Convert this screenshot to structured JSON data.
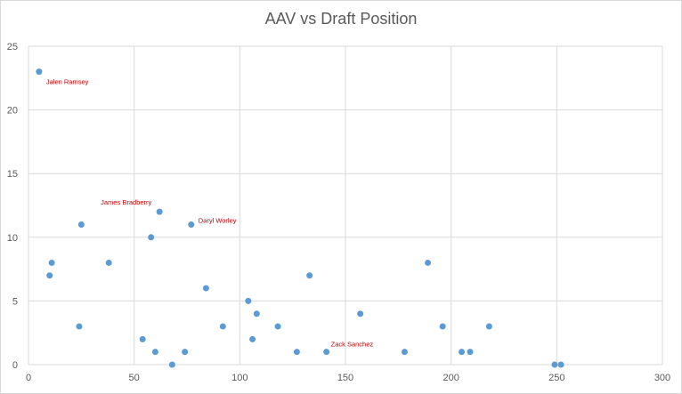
{
  "chart_data": {
    "type": "scatter",
    "title": "AAV vs Draft Position",
    "xlabel": "",
    "ylabel": "",
    "xlim": [
      0,
      300
    ],
    "ylim": [
      0,
      25
    ],
    "x_ticks": [
      0,
      50,
      100,
      150,
      200,
      250,
      300
    ],
    "y_ticks": [
      0,
      5,
      10,
      15,
      20,
      25
    ],
    "grid": true,
    "legend": "none",
    "marker_color": "#5b9bd5",
    "annotation_color": "#c00000",
    "points": [
      {
        "x": 5,
        "y": 23
      },
      {
        "x": 10,
        "y": 7
      },
      {
        "x": 11,
        "y": 8
      },
      {
        "x": 24,
        "y": 3
      },
      {
        "x": 25,
        "y": 11
      },
      {
        "x": 38,
        "y": 8
      },
      {
        "x": 54,
        "y": 2
      },
      {
        "x": 58,
        "y": 10
      },
      {
        "x": 60,
        "y": 1
      },
      {
        "x": 62,
        "y": 12
      },
      {
        "x": 68,
        "y": 0
      },
      {
        "x": 74,
        "y": 1
      },
      {
        "x": 77,
        "y": 11
      },
      {
        "x": 84,
        "y": 6
      },
      {
        "x": 92,
        "y": 3
      },
      {
        "x": 104,
        "y": 5
      },
      {
        "x": 106,
        "y": 2
      },
      {
        "x": 108,
        "y": 4
      },
      {
        "x": 118,
        "y": 3
      },
      {
        "x": 127,
        "y": 1
      },
      {
        "x": 133,
        "y": 7
      },
      {
        "x": 141,
        "y": 1
      },
      {
        "x": 157,
        "y": 4
      },
      {
        "x": 178,
        "y": 1
      },
      {
        "x": 189,
        "y": 8
      },
      {
        "x": 196,
        "y": 3
      },
      {
        "x": 205,
        "y": 1
      },
      {
        "x": 209,
        "y": 1
      },
      {
        "x": 218,
        "y": 3
      },
      {
        "x": 249,
        "y": 0
      },
      {
        "x": 252,
        "y": 0
      }
    ],
    "annotations": [
      {
        "text": "Jalen Ramsey",
        "x": 5,
        "y": 23
      },
      {
        "text": "James Bradberry",
        "x": 62,
        "y": 12
      },
      {
        "text": "Daryl Worley",
        "x": 77,
        "y": 11
      },
      {
        "text": "Zack Sanchez",
        "x": 141,
        "y": 1
      }
    ]
  }
}
